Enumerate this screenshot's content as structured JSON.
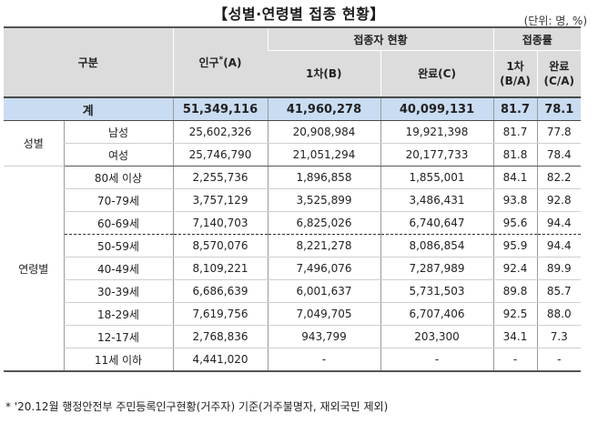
{
  "title": "【성별·연령별 접종 현황】",
  "unit": "(단위: 명, %)",
  "header": {
    "category": "구분",
    "population": "인구",
    "population_star": "*",
    "population_suffix": "(A)",
    "vaccinated": "접종자 현황",
    "rate": "접종률",
    "first": "1차(B)",
    "complete": "완료(C)",
    "first_rate_a": "1차",
    "first_rate_b": "(B/A)",
    "complete_rate_a": "완료",
    "complete_rate_b": "(C/A)"
  },
  "total": {
    "label": "계",
    "population": "51,349,116",
    "first": "41,960,278",
    "complete": "40,099,131",
    "first_rate": "81.7",
    "complete_rate": "78.1"
  },
  "gender": {
    "label": "성별",
    "rows": [
      {
        "label": "남성",
        "population": "25,602,326",
        "first": "20,908,984",
        "complete": "19,921,398",
        "first_rate": "81.7",
        "complete_rate": "77.8"
      },
      {
        "label": "여성",
        "population": "25,746,790",
        "first": "21,051,294",
        "complete": "20,177,733",
        "first_rate": "81.8",
        "complete_rate": "78.4"
      }
    ]
  },
  "age": {
    "label": "연령별",
    "rows": [
      {
        "label": "80세 이상",
        "population": "2,255,736",
        "first": "1,896,858",
        "complete": "1,855,001",
        "first_rate": "84.1",
        "complete_rate": "82.2"
      },
      {
        "label": "70-79세",
        "population": "3,757,129",
        "first": "3,525,899",
        "complete": "3,486,431",
        "first_rate": "93.8",
        "complete_rate": "92.8"
      },
      {
        "label": "60-69세",
        "population": "7,140,703",
        "first": "6,825,026",
        "complete": "6,740,647",
        "first_rate": "95.6",
        "complete_rate": "94.4"
      },
      {
        "label": "50-59세",
        "population": "8,570,076",
        "first": "8,221,278",
        "complete": "8,086,854",
        "first_rate": "95.9",
        "complete_rate": "94.4"
      },
      {
        "label": "40-49세",
        "population": "8,109,221",
        "first": "7,496,076",
        "complete": "7,287,989",
        "first_rate": "92.4",
        "complete_rate": "89.9"
      },
      {
        "label": "30-39세",
        "population": "6,686,639",
        "first": "6,001,637",
        "complete": "5,731,503",
        "first_rate": "89.8",
        "complete_rate": "85.7"
      },
      {
        "label": "18-29세",
        "population": "7,619,756",
        "first": "7,049,705",
        "complete": "6,707,406",
        "first_rate": "92.5",
        "complete_rate": "88.0"
      },
      {
        "label": "12-17세",
        "population": "2,768,836",
        "first": "943,799",
        "complete": "203,300",
        "first_rate": "34.1",
        "complete_rate": "7.3"
      },
      {
        "label": "11세 이하",
        "population": "4,441,020",
        "first": "-",
        "complete": "-",
        "first_rate": "-",
        "complete_rate": "-"
      }
    ]
  },
  "footnote": "* '20.12월 행정안전부 주민등록인구현황(거주자) 기준(거주불명자, 재외국민 제외)"
}
